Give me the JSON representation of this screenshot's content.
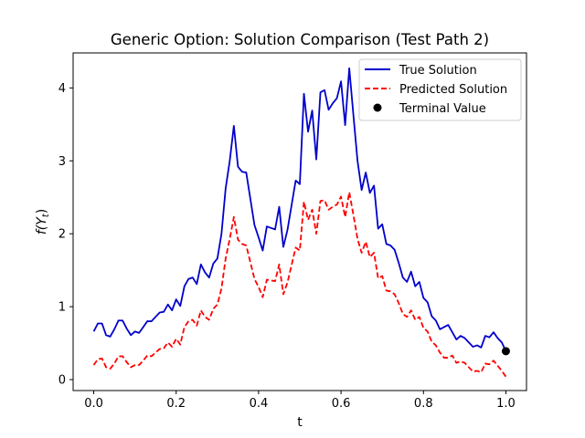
{
  "chart_data": {
    "type": "line",
    "title": "Generic Option: Solution Comparison (Test Path 2)",
    "xlabel": "t",
    "ylabel": "f(Y_t)",
    "xlim": [
      -0.05,
      1.05
    ],
    "ylim": [
      -0.15,
      4.48
    ],
    "xticks": [
      0.0,
      0.2,
      0.4,
      0.6,
      0.8,
      1.0
    ],
    "xtick_labels": [
      "0.0",
      "0.2",
      "0.4",
      "0.6",
      "0.8",
      "1.0"
    ],
    "yticks": [
      0,
      1,
      2,
      3,
      4
    ],
    "ytick_labels": [
      "0",
      "1",
      "2",
      "3",
      "4"
    ],
    "grid": false,
    "legend_position": "top-right",
    "x": [
      0.0,
      0.01,
      0.02,
      0.03,
      0.04,
      0.05,
      0.06,
      0.07,
      0.08,
      0.09,
      0.1,
      0.11,
      0.12,
      0.13,
      0.14,
      0.15,
      0.16,
      0.17,
      0.18,
      0.19,
      0.2,
      0.21,
      0.22,
      0.23,
      0.24,
      0.25,
      0.26,
      0.27,
      0.28,
      0.29,
      0.3,
      0.31,
      0.32,
      0.33,
      0.34,
      0.35,
      0.36,
      0.37,
      0.38,
      0.39,
      0.4,
      0.41,
      0.42,
      0.43,
      0.44,
      0.45,
      0.46,
      0.47,
      0.48,
      0.49,
      0.5,
      0.51,
      0.52,
      0.53,
      0.54,
      0.55,
      0.56,
      0.57,
      0.58,
      0.59,
      0.6,
      0.61,
      0.62,
      0.63,
      0.64,
      0.65,
      0.66,
      0.67,
      0.68,
      0.69,
      0.7,
      0.71,
      0.72,
      0.73,
      0.74,
      0.75,
      0.76,
      0.77,
      0.78,
      0.79,
      0.8,
      0.81,
      0.82,
      0.83,
      0.84,
      0.85,
      0.86,
      0.87,
      0.88,
      0.89,
      0.9,
      0.91,
      0.92,
      0.93,
      0.94,
      0.95,
      0.96,
      0.97,
      0.98,
      0.99,
      1.0
    ],
    "series": [
      {
        "name": "True Solution",
        "color": "#0000cc",
        "style": "solid",
        "values": [
          0.66,
          0.77,
          0.77,
          0.61,
          0.59,
          0.69,
          0.81,
          0.81,
          0.7,
          0.61,
          0.66,
          0.64,
          0.72,
          0.8,
          0.8,
          0.86,
          0.92,
          0.93,
          1.03,
          0.95,
          1.1,
          1.01,
          1.28,
          1.38,
          1.4,
          1.31,
          1.58,
          1.47,
          1.4,
          1.59,
          1.66,
          2.0,
          2.62,
          3.0,
          3.48,
          2.92,
          2.85,
          2.84,
          2.48,
          2.12,
          1.95,
          1.77,
          2.1,
          2.08,
          2.06,
          2.37,
          1.82,
          2.05,
          2.39,
          2.73,
          2.68,
          3.92,
          3.4,
          3.69,
          3.02,
          3.94,
          3.97,
          3.7,
          3.79,
          3.86,
          4.09,
          3.49,
          4.27,
          3.63,
          3.0,
          2.6,
          2.84,
          2.56,
          2.66,
          2.07,
          2.13,
          1.86,
          1.84,
          1.78,
          1.6,
          1.4,
          1.34,
          1.48,
          1.28,
          1.34,
          1.12,
          1.06,
          0.87,
          0.81,
          0.69,
          0.72,
          0.75,
          0.65,
          0.55,
          0.6,
          0.57,
          0.51,
          0.45,
          0.47,
          0.44,
          0.6,
          0.58,
          0.65,
          0.57,
          0.51,
          0.39
        ]
      },
      {
        "name": "Predicted Solution",
        "color": "#ff0000",
        "style": "dashed",
        "values": [
          0.2,
          0.28,
          0.29,
          0.17,
          0.15,
          0.22,
          0.32,
          0.32,
          0.24,
          0.17,
          0.2,
          0.2,
          0.26,
          0.33,
          0.32,
          0.37,
          0.42,
          0.43,
          0.51,
          0.45,
          0.56,
          0.48,
          0.72,
          0.8,
          0.82,
          0.74,
          0.95,
          0.86,
          0.82,
          0.97,
          1.03,
          1.25,
          1.66,
          1.93,
          2.23,
          1.92,
          1.86,
          1.84,
          1.61,
          1.38,
          1.27,
          1.13,
          1.37,
          1.36,
          1.35,
          1.58,
          1.17,
          1.33,
          1.57,
          1.81,
          1.77,
          2.44,
          2.19,
          2.33,
          2.0,
          2.45,
          2.46,
          2.33,
          2.37,
          2.4,
          2.51,
          2.23,
          2.57,
          2.26,
          1.93,
          1.74,
          1.89,
          1.68,
          1.74,
          1.39,
          1.42,
          1.22,
          1.21,
          1.17,
          1.05,
          0.9,
          0.86,
          0.95,
          0.82,
          0.86,
          0.71,
          0.66,
          0.52,
          0.47,
          0.37,
          0.3,
          0.3,
          0.33,
          0.23,
          0.25,
          0.23,
          0.17,
          0.11,
          0.12,
          0.1,
          0.22,
          0.21,
          0.26,
          0.19,
          0.12,
          0.04
        ]
      }
    ],
    "markers": [
      {
        "name": "Terminal Value",
        "color": "#000000",
        "x": 1.0,
        "y": 0.39
      }
    ]
  }
}
